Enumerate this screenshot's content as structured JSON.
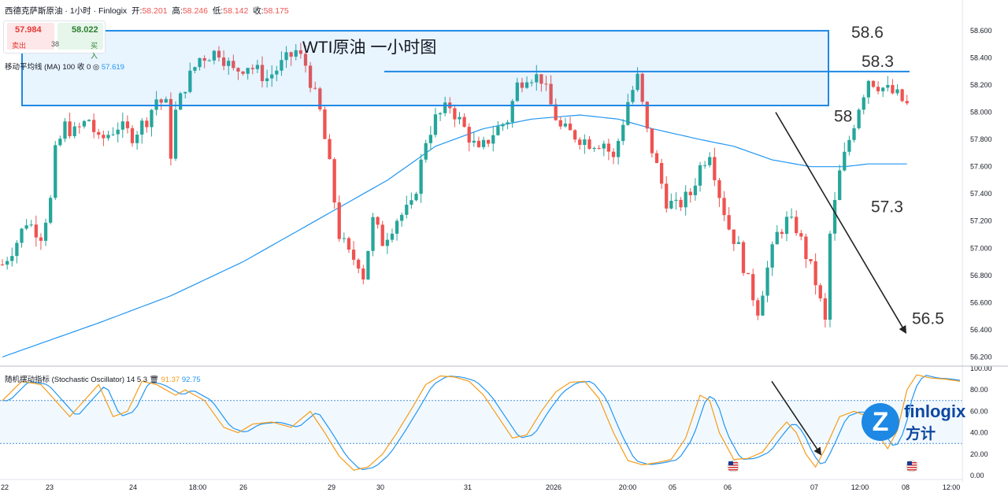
{
  "header": {
    "symbol": "西德克萨斯原油 · 1小时 · Finlogix",
    "open_label": "开:",
    "open": "58.201",
    "high_label": "高:",
    "high": "58.246",
    "low_label": "低:",
    "low": "58.142",
    "close_label": "收:",
    "close": "58.175"
  },
  "trade": {
    "sell_price": "57.984",
    "sell_label": "卖出",
    "buy_price": "58.022",
    "buy_label": "买入",
    "spread": "38"
  },
  "ma_legend": {
    "name": "移动平均线 (MA)",
    "params": "100 收 0",
    "value": "57.619"
  },
  "stoch_legend": {
    "name": "随机摆动指标 (Stochastic Oscillator)",
    "params": "14 5 3",
    "k_value": "91.37",
    "d_value": "92.75"
  },
  "logo": {
    "mark": "Z",
    "en": "finlogix",
    "cn": "方计"
  },
  "colors": {
    "up": "#26a69a",
    "down": "#ef5350",
    "ma": "#2196f3",
    "k": "#f59c1a",
    "d": "#2196f3",
    "box": "#1e88e5"
  },
  "chart_data": {
    "type": "candlestick",
    "title": "WTI原油 一小时图",
    "y_ticks": [
      "58.600",
      "58.400",
      "58.200",
      "58.000",
      "57.800",
      "57.600",
      "57.400",
      "57.200",
      "57.000",
      "56.800",
      "56.600",
      "56.400",
      "56.200"
    ],
    "ylim": [
      56.15,
      58.78
    ],
    "x_ticks": [
      "22",
      "23",
      "24",
      "18:00",
      "26",
      "29",
      "30",
      "31",
      "2026",
      "20:00",
      "05",
      "06",
      "07",
      "12:00",
      "08",
      "12:00"
    ],
    "annotations": {
      "box_label": "WTI原油 一小时图",
      "resistance_box": [
        58.05,
        58.6
      ],
      "resistance_line": 58.3,
      "levels": [
        "58.6",
        "58.3",
        "58",
        "57.3",
        "56.5"
      ]
    },
    "stochastic": {
      "ticks": [
        "100.00",
        "80.00",
        "60.00",
        "40.00",
        "20.00",
        "0.00"
      ],
      "upper_band": 70,
      "lower_band": 30
    },
    "anchors": [
      [
        0,
        56.88
      ],
      [
        3,
        57.05
      ],
      [
        5,
        57.2
      ],
      [
        8,
        57.1
      ],
      [
        10,
        57.35
      ],
      [
        11,
        57.7
      ],
      [
        13,
        57.9
      ],
      [
        15,
        57.85
      ],
      [
        18,
        57.95
      ],
      [
        20,
        57.78
      ],
      [
        24,
        57.9
      ],
      [
        27,
        57.83
      ],
      [
        30,
        57.95
      ],
      [
        32,
        58.1
      ],
      [
        34,
        58.05
      ],
      [
        35,
        57.7
      ],
      [
        36,
        58.0
      ],
      [
        38,
        58.2
      ],
      [
        41,
        58.4
      ],
      [
        45,
        58.45
      ],
      [
        48,
        58.3
      ],
      [
        51,
        58.35
      ],
      [
        55,
        58.25
      ],
      [
        58,
        58.35
      ],
      [
        61,
        58.45
      ],
      [
        63,
        58.35
      ],
      [
        66,
        58.0
      ],
      [
        68,
        57.6
      ],
      [
        70,
        57.1
      ],
      [
        72,
        56.95
      ],
      [
        74,
        56.9
      ],
      [
        75,
        56.8
      ],
      [
        77,
        57.2
      ],
      [
        79,
        57.05
      ],
      [
        82,
        57.22
      ],
      [
        85,
        57.3
      ],
      [
        86,
        57.45
      ],
      [
        88,
        57.8
      ],
      [
        90,
        57.95
      ],
      [
        93,
        58.05
      ],
      [
        96,
        57.88
      ],
      [
        99,
        57.7
      ],
      [
        102,
        57.85
      ],
      [
        105,
        57.95
      ],
      [
        107,
        58.2
      ],
      [
        109,
        58.28
      ],
      [
        112,
        58.25
      ],
      [
        114,
        58.05
      ],
      [
        116,
        57.88
      ],
      [
        119,
        57.83
      ],
      [
        122,
        57.78
      ],
      [
        125,
        57.78
      ],
      [
        127,
        57.65
      ],
      [
        130,
        58.08
      ],
      [
        132,
        58.25
      ],
      [
        134,
        57.85
      ],
      [
        136,
        57.6
      ],
      [
        138,
        57.35
      ],
      [
        140,
        57.3
      ],
      [
        143,
        57.4
      ],
      [
        145,
        57.6
      ],
      [
        147,
        57.72
      ],
      [
        149,
        57.4
      ],
      [
        151,
        57.15
      ],
      [
        153,
        57.0
      ],
      [
        155,
        56.75
      ],
      [
        157,
        56.55
      ],
      [
        159,
        56.85
      ],
      [
        161,
        57.1
      ],
      [
        163,
        57.2
      ],
      [
        165,
        57.15
      ],
      [
        167,
        56.95
      ],
      [
        169,
        56.75
      ],
      [
        171,
        56.45
      ],
      [
        172,
        57.1
      ],
      [
        174,
        57.55
      ],
      [
        176,
        57.8
      ],
      [
        178,
        58.05
      ],
      [
        180,
        58.25
      ],
      [
        183,
        58.18
      ],
      [
        186,
        58.12
      ],
      [
        188,
        58.05
      ]
    ],
    "ma_anchors": [
      [
        0,
        56.2
      ],
      [
        20,
        56.45
      ],
      [
        35,
        56.65
      ],
      [
        50,
        56.9
      ],
      [
        65,
        57.2
      ],
      [
        80,
        57.5
      ],
      [
        90,
        57.75
      ],
      [
        100,
        57.88
      ],
      [
        110,
        57.95
      ],
      [
        120,
        57.98
      ],
      [
        128,
        57.95
      ],
      [
        135,
        57.88
      ],
      [
        145,
        57.8
      ],
      [
        152,
        57.75
      ],
      [
        160,
        57.65
      ],
      [
        168,
        57.6
      ],
      [
        175,
        57.6
      ],
      [
        180,
        57.62
      ],
      [
        188,
        57.62
      ]
    ],
    "stoch_anchors": [
      [
        0,
        70
      ],
      [
        4,
        88
      ],
      [
        8,
        85
      ],
      [
        14,
        55
      ],
      [
        17,
        70
      ],
      [
        20,
        85
      ],
      [
        23,
        55
      ],
      [
        26,
        60
      ],
      [
        29,
        88
      ],
      [
        32,
        85
      ],
      [
        36,
        75
      ],
      [
        38,
        80
      ],
      [
        42,
        70
      ],
      [
        46,
        45
      ],
      [
        49,
        40
      ],
      [
        52,
        48
      ],
      [
        56,
        50
      ],
      [
        60,
        45
      ],
      [
        64,
        60
      ],
      [
        67,
        40
      ],
      [
        70,
        18
      ],
      [
        73,
        5
      ],
      [
        76,
        8
      ],
      [
        79,
        20
      ],
      [
        82,
        40
      ],
      [
        85,
        62
      ],
      [
        88,
        85
      ],
      [
        91,
        93
      ],
      [
        94,
        92
      ],
      [
        97,
        88
      ],
      [
        100,
        75
      ],
      [
        103,
        55
      ],
      [
        106,
        35
      ],
      [
        109,
        38
      ],
      [
        112,
        60
      ],
      [
        115,
        78
      ],
      [
        118,
        87
      ],
      [
        121,
        88
      ],
      [
        124,
        72
      ],
      [
        127,
        40
      ],
      [
        130,
        14
      ],
      [
        133,
        10
      ],
      [
        136,
        12
      ],
      [
        139,
        15
      ],
      [
        142,
        35
      ],
      [
        145,
        75
      ],
      [
        147,
        70
      ],
      [
        149,
        40
      ],
      [
        152,
        15
      ],
      [
        155,
        16
      ],
      [
        158,
        22
      ],
      [
        161,
        40
      ],
      [
        163,
        50
      ],
      [
        165,
        40
      ],
      [
        167,
        20
      ],
      [
        169,
        8
      ],
      [
        171,
        25
      ],
      [
        174,
        55
      ],
      [
        177,
        60
      ],
      [
        180,
        55
      ],
      [
        182,
        38
      ],
      [
        184,
        25
      ],
      [
        186,
        42
      ],
      [
        188,
        80
      ],
      [
        190,
        94
      ],
      [
        193,
        91
      ],
      [
        196,
        90
      ],
      [
        199,
        88
      ]
    ]
  }
}
